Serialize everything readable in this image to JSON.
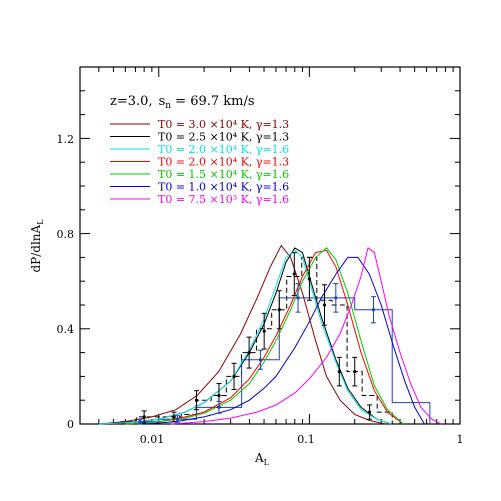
{
  "chart_data": {
    "type": "line",
    "header": {
      "z": "z=3.0,",
      "sn": "s",
      "sn_sub": "n",
      "sn_value": " = 69.7 km/s"
    },
    "xlabel": {
      "main": "A",
      "sub": "L"
    },
    "ylabel": {
      "main": "dP/dlnA",
      "sub": "L"
    },
    "x_scale": "log",
    "xlim": [
      0.003,
      1.0
    ],
    "ylim": [
      0,
      1.5
    ],
    "x_ticks": [
      {
        "value": 0.01,
        "label": "0.01"
      },
      {
        "value": 0.1,
        "label": "0.1"
      },
      {
        "value": 1,
        "label": "1"
      }
    ],
    "y_ticks": [
      {
        "value": 0,
        "label": "0"
      },
      {
        "value": 0.4,
        "label": "0.4"
      },
      {
        "value": 0.8,
        "label": "0.8"
      },
      {
        "value": 1.2,
        "label": "1.2"
      }
    ],
    "series": [
      {
        "name": "T0 = 3.0 ×10⁴ K, γ=1.3",
        "color": "#8b0000",
        "x": [
          0.004,
          0.006,
          0.009,
          0.013,
          0.018,
          0.025,
          0.035,
          0.045,
          0.055,
          0.065,
          0.075,
          0.09,
          0.11,
          0.13,
          0.16,
          0.2,
          0.25,
          0.32
        ],
        "y": [
          0.0,
          0.01,
          0.03,
          0.06,
          0.12,
          0.22,
          0.38,
          0.53,
          0.66,
          0.75,
          0.7,
          0.55,
          0.35,
          0.2,
          0.1,
          0.04,
          0.015,
          0.0
        ]
      },
      {
        "name": "T0 = 2.5 ×10⁴ K, γ=1.3",
        "color": "#000000",
        "x": [
          0.004,
          0.006,
          0.01,
          0.015,
          0.02,
          0.03,
          0.04,
          0.05,
          0.06,
          0.07,
          0.08,
          0.09,
          0.1,
          0.12,
          0.15,
          0.18,
          0.22,
          0.28,
          0.35
        ],
        "y": [
          0.0,
          0.005,
          0.02,
          0.05,
          0.09,
          0.18,
          0.3,
          0.42,
          0.55,
          0.68,
          0.74,
          0.72,
          0.62,
          0.45,
          0.27,
          0.15,
          0.07,
          0.02,
          0.0
        ]
      },
      {
        "name": "T0 = 2.0 ×10⁴ K, γ=1.6",
        "color": "#00e5ee",
        "x": [
          0.004,
          0.006,
          0.01,
          0.015,
          0.02,
          0.03,
          0.04,
          0.05,
          0.06,
          0.07,
          0.08,
          0.09,
          0.1,
          0.12,
          0.15,
          0.18,
          0.22,
          0.28,
          0.35
        ],
        "y": [
          0.0,
          0.005,
          0.02,
          0.05,
          0.09,
          0.18,
          0.31,
          0.44,
          0.58,
          0.7,
          0.73,
          0.7,
          0.6,
          0.43,
          0.26,
          0.14,
          0.06,
          0.02,
          0.0
        ]
      },
      {
        "name": "T0 = 2.0 ×10⁴ K, γ=1.3",
        "color": "#ff0000",
        "x": [
          0.006,
          0.01,
          0.015,
          0.02,
          0.03,
          0.04,
          0.05,
          0.06,
          0.075,
          0.09,
          0.11,
          0.13,
          0.15,
          0.18,
          0.22,
          0.27,
          0.33,
          0.42
        ],
        "y": [
          0.0,
          0.01,
          0.03,
          0.05,
          0.11,
          0.19,
          0.28,
          0.37,
          0.5,
          0.62,
          0.72,
          0.73,
          0.66,
          0.5,
          0.3,
          0.14,
          0.05,
          0.0
        ]
      },
      {
        "name": "T0 = 1.5 ×10⁴ K, γ=1.6",
        "color": "#00cc00",
        "x": [
          0.006,
          0.01,
          0.015,
          0.02,
          0.03,
          0.04,
          0.05,
          0.06,
          0.075,
          0.09,
          0.11,
          0.13,
          0.15,
          0.18,
          0.22,
          0.27,
          0.33,
          0.42
        ],
        "y": [
          0.0,
          0.01,
          0.025,
          0.045,
          0.1,
          0.17,
          0.26,
          0.35,
          0.48,
          0.6,
          0.7,
          0.74,
          0.69,
          0.55,
          0.35,
          0.16,
          0.06,
          0.0
        ]
      },
      {
        "name": "T0 = 1.0 ×10⁴ K, γ=1.6",
        "color": "#0000cc",
        "x": [
          0.008,
          0.013,
          0.02,
          0.03,
          0.04,
          0.05,
          0.06,
          0.08,
          0.1,
          0.12,
          0.15,
          0.18,
          0.21,
          0.25,
          0.3,
          0.36,
          0.43,
          0.5,
          0.58
        ],
        "y": [
          0.0,
          0.01,
          0.03,
          0.06,
          0.1,
          0.15,
          0.2,
          0.32,
          0.43,
          0.53,
          0.63,
          0.7,
          0.7,
          0.63,
          0.5,
          0.33,
          0.18,
          0.07,
          0.0
        ]
      },
      {
        "name": "T0 = 7.5 ×10³ K, γ=1.6",
        "color": "#ff00ff",
        "x": [
          0.012,
          0.02,
          0.03,
          0.045,
          0.06,
          0.08,
          0.1,
          0.13,
          0.16,
          0.19,
          0.22,
          0.245,
          0.27,
          0.3,
          0.34,
          0.4,
          0.47,
          0.55,
          0.65,
          0.75
        ],
        "y": [
          0.0,
          0.01,
          0.025,
          0.05,
          0.08,
          0.13,
          0.19,
          0.28,
          0.38,
          0.5,
          0.62,
          0.74,
          0.72,
          0.6,
          0.45,
          0.3,
          0.17,
          0.07,
          0.02,
          0.0
        ]
      }
    ],
    "obs_dashed_hist": {
      "color": "#000000",
      "edges": [
        0.0057,
        0.0071,
        0.0089,
        0.011,
        0.0141,
        0.0177,
        0.0223,
        0.0281,
        0.0354,
        0.0446,
        0.0562,
        0.0707,
        0.089,
        0.112,
        0.1413,
        0.178,
        0.224,
        0.282,
        0.355
      ],
      "values": [
        0.01,
        0.03,
        0.03,
        0.03,
        0.04,
        0.1,
        0.12,
        0.2,
        0.3,
        0.4,
        0.48,
        0.62,
        0.7,
        0.52,
        0.5,
        0.22,
        0.12,
        0.05
      ]
    },
    "obs_points": {
      "color": "#000000",
      "x": [
        0.008,
        0.0126,
        0.0178,
        0.0251,
        0.0316,
        0.0398,
        0.0501,
        0.0631,
        0.0794,
        0.1,
        0.126,
        0.158,
        0.2,
        0.251
      ],
      "y": [
        0.03,
        0.03,
        0.1,
        0.12,
        0.2,
        0.3,
        0.39,
        0.48,
        0.63,
        0.61,
        0.5,
        0.22,
        0.22,
        0.05
      ],
      "err": [
        0.025,
        0.02,
        0.04,
        0.05,
        0.055,
        0.065,
        0.075,
        0.08,
        0.09,
        0.09,
        0.085,
        0.06,
        0.06,
        0.03
      ]
    },
    "sim_hist": {
      "color": "#1f3fbf",
      "edges": [
        0.0056,
        0.01,
        0.0178,
        0.0355,
        0.0631,
        0.1122,
        0.2,
        0.3548,
        0.631
      ],
      "values": [
        0.01,
        0.02,
        0.07,
        0.27,
        0.53,
        0.53,
        0.48,
        0.09
      ]
    },
    "sim_points": {
      "color": "#1f3fbf",
      "x": [
        0.0075,
        0.0133,
        0.0251,
        0.0473,
        0.0841,
        0.1498,
        0.2664
      ],
      "y": [
        0.01,
        0.02,
        0.07,
        0.27,
        0.53,
        0.53,
        0.48
      ],
      "err": [
        0.01,
        0.015,
        0.025,
        0.04,
        0.06,
        0.06,
        0.055
      ]
    }
  }
}
